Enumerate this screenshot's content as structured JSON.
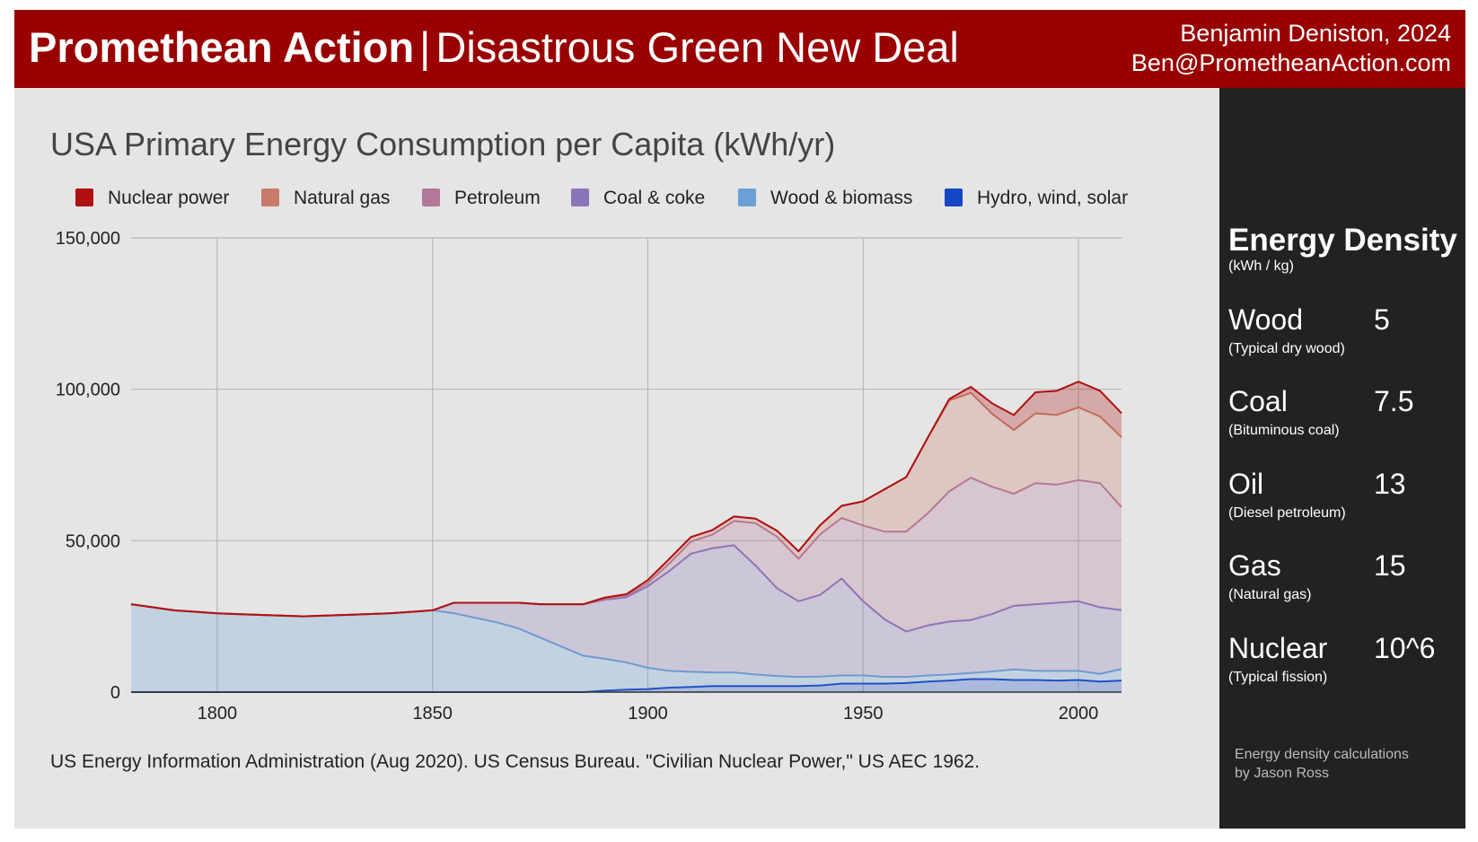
{
  "header": {
    "brand": "Promethean Action",
    "separator": "|",
    "subtitle": "Disastrous Green New Deal",
    "author_line1": "Benjamin Deniston, 2024",
    "author_line2": "Ben@PrometheanAction.com",
    "background_color": "#990000"
  },
  "sidebar": {
    "title": "Energy Density",
    "unit": "(kWh / kg)",
    "items": [
      {
        "name": "Wood",
        "value": "5",
        "note": "(Typical dry wood)"
      },
      {
        "name": "Coal",
        "value": "7.5",
        "note": "(Bituminous coal)"
      },
      {
        "name": "Oil",
        "value": "13",
        "note": "(Diesel petroleum)"
      },
      {
        "name": "Gas",
        "value": "15",
        "note": "(Natural gas)"
      },
      {
        "name": "Nuclear",
        "value": "10^6",
        "note": "(Typical fission)"
      }
    ],
    "credit_line1": "Energy density calculations",
    "credit_line2": "by Jason Ross"
  },
  "source": "US Energy Information Administration (Aug 2020). US Census Bureau. \"Civilian Nuclear Power,\" US AEC 1962.",
  "chart_data": {
    "type": "area",
    "stacked": true,
    "title": "USA Primary Energy Consumption per Capita (kWh/yr)",
    "xlabel": "",
    "ylabel": "",
    "xlim": [
      1780,
      2010
    ],
    "ylim": [
      0,
      150000
    ],
    "xticks": [
      "1800",
      "1850",
      "1900",
      "1950",
      "2000"
    ],
    "yticks": [
      "0",
      "50,000",
      "100,000",
      "150,000"
    ],
    "xtick_values": [
      1800,
      1850,
      1900,
      1950,
      2000
    ],
    "ytick_values": [
      0,
      50000,
      100000,
      150000
    ],
    "grid": true,
    "legend_position": "top",
    "x": [
      1780,
      1790,
      1800,
      1810,
      1820,
      1830,
      1840,
      1845,
      1850,
      1855,
      1860,
      1865,
      1870,
      1875,
      1880,
      1885,
      1890,
      1895,
      1900,
      1905,
      1910,
      1915,
      1920,
      1925,
      1930,
      1935,
      1940,
      1945,
      1950,
      1955,
      1960,
      1965,
      1970,
      1975,
      1980,
      1985,
      1990,
      1995,
      2000,
      2005,
      2010
    ],
    "series": [
      {
        "name": "Hydro, wind, solar",
        "color": "#1447c4",
        "values": [
          0,
          0,
          0,
          0,
          0,
          0,
          0,
          0,
          0,
          0,
          0,
          0,
          0,
          0,
          0,
          0,
          500,
          800,
          1000,
          1500,
          1700,
          2000,
          2000,
          2000,
          2000,
          2000,
          2200,
          2800,
          2800,
          2800,
          3000,
          3500,
          3800,
          4300,
          4300,
          4000,
          4000,
          3800,
          4000,
          3500,
          3800
        ]
      },
      {
        "name": "Wood & biomass",
        "color": "#6ba0d6",
        "values": [
          29000,
          27000,
          26000,
          25500,
          25000,
          25500,
          26000,
          26500,
          27000,
          26000,
          24500,
          23000,
          21000,
          18000,
          15000,
          12000,
          10500,
          9000,
          7000,
          5500,
          5000,
          4500,
          4500,
          3800,
          3300,
          3000,
          2900,
          2700,
          2700,
          2200,
          2000,
          2000,
          2000,
          2000,
          2500,
          3500,
          3000,
          3200,
          3000,
          2500,
          3800
        ]
      },
      {
        "name": "Coal & coke",
        "color": "#8a75b8",
        "values": [
          0,
          0,
          0,
          0,
          0,
          0,
          0,
          0,
          0,
          3500,
          5000,
          6500,
          8500,
          11000,
          14000,
          17000,
          19500,
          21500,
          27000,
          33000,
          39000,
          41000,
          42000,
          36000,
          29000,
          25000,
          27000,
          32000,
          24500,
          19000,
          15000,
          16500,
          17500,
          17500,
          19000,
          21000,
          22000,
          22500,
          23000,
          22000,
          19500
        ]
      },
      {
        "name": "Petroleum",
        "color": "#b3779a",
        "values": [
          0,
          0,
          0,
          0,
          0,
          0,
          0,
          0,
          0,
          0,
          0,
          0,
          0,
          0,
          0,
          0,
          200,
          500,
          1000,
          2500,
          4000,
          4500,
          8000,
          14000,
          17000,
          14000,
          20000,
          20000,
          25000,
          29000,
          33000,
          37000,
          43000,
          47000,
          42000,
          37000,
          40000,
          39000,
          40000,
          41000,
          34000
        ]
      },
      {
        "name": "Natural gas",
        "color": "#c97b6a",
        "values": [
          0,
          0,
          0,
          0,
          0,
          0,
          0,
          0,
          0,
          0,
          0,
          0,
          0,
          0,
          0,
          0,
          500,
          500,
          1000,
          1500,
          1500,
          1500,
          1500,
          1500,
          2000,
          2500,
          3000,
          4000,
          8000,
          14000,
          18000,
          25000,
          30000,
          28000,
          24000,
          21000,
          23000,
          23000,
          24000,
          22000,
          23000
        ]
      },
      {
        "name": "Nuclear power",
        "color": "#b01010",
        "values": [
          0,
          0,
          0,
          0,
          0,
          0,
          0,
          0,
          0,
          0,
          0,
          0,
          0,
          0,
          0,
          0,
          0,
          0,
          0,
          0,
          0,
          0,
          0,
          0,
          0,
          0,
          0,
          0,
          0,
          0,
          0,
          0,
          500,
          2000,
          3500,
          5000,
          7000,
          8000,
          8500,
          8500,
          8000
        ]
      }
    ]
  }
}
